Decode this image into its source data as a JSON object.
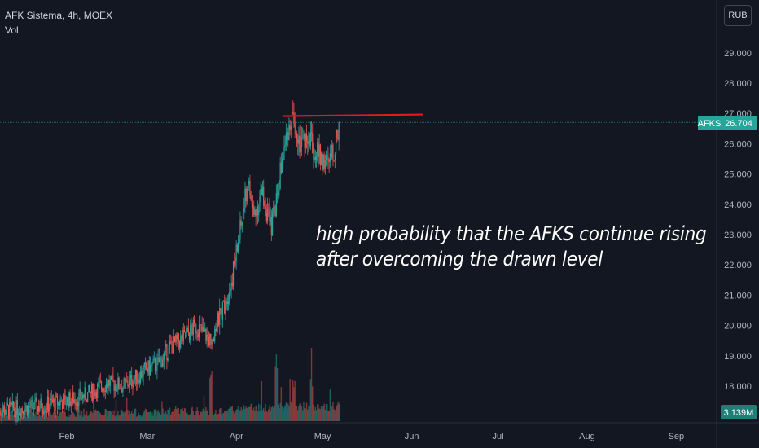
{
  "legend": {
    "symbol_line": "AFK Sistema, 4h, MOEX",
    "volume_label": "Vol"
  },
  "currency_button": "RUB",
  "annotation": {
    "line1": "high probability that the AFKS continue rising",
    "line2": "after overcoming the drawn level"
  },
  "colors": {
    "background": "#131722",
    "up": "#26a69a",
    "down": "#ef5350",
    "level_line": "#e01b1b",
    "axis_text": "#b2b5be"
  },
  "chart_data": {
    "type": "candlestick",
    "title": "",
    "xlabel": "",
    "ylabel": "",
    "symbol": "AFKS",
    "timeframe": "4h",
    "ylim": [
      16.9,
      29.7
    ],
    "y_ticks": [
      "18.000",
      "19.000",
      "20.000",
      "21.000",
      "22.000",
      "23.000",
      "24.000",
      "25.000",
      "26.000",
      "27.000",
      "28.000",
      "29.000"
    ],
    "x_ticks": [
      "Feb",
      "Mar",
      "Apr",
      "May",
      "Jun",
      "Jul",
      "Aug",
      "Sep"
    ],
    "last_price": 26.704,
    "last_price_label": "26.704",
    "volume_label": "3.139M",
    "grid": false,
    "resistance_level": {
      "value": 26.95,
      "from": "Apr 17",
      "to": "Jun 5"
    },
    "close_series": [
      {
        "date": "Jan 8",
        "close": 17.2
      },
      {
        "date": "Jan 20",
        "close": 17.3
      },
      {
        "date": "Jan 31",
        "close": 17.5
      },
      {
        "date": "Feb 8",
        "close": 17.7
      },
      {
        "date": "Feb 15",
        "close": 18.1
      },
      {
        "date": "Feb 21",
        "close": 18.0
      },
      {
        "date": "Feb 28",
        "close": 18.5
      },
      {
        "date": "Mar 5",
        "close": 18.75
      },
      {
        "date": "Mar 9",
        "close": 19.3
      },
      {
        "date": "Mar 14",
        "close": 19.6
      },
      {
        "date": "Mar 18",
        "close": 20.0
      },
      {
        "date": "Mar 23",
        "close": 19.5
      },
      {
        "date": "Mar 27",
        "close": 20.5
      },
      {
        "date": "Mar 30",
        "close": 21.3
      },
      {
        "date": "Apr 1",
        "close": 22.4
      },
      {
        "date": "Apr 3",
        "close": 23.5
      },
      {
        "date": "Apr 5",
        "close": 24.8
      },
      {
        "date": "Apr 7",
        "close": 23.6
      },
      {
        "date": "Apr 10",
        "close": 24.4
      },
      {
        "date": "Apr 13",
        "close": 23.2
      },
      {
        "date": "Apr 15",
        "close": 24.2
      },
      {
        "date": "Apr 17",
        "close": 25.5
      },
      {
        "date": "Apr 19",
        "close": 26.5
      },
      {
        "date": "Apr 21",
        "close": 27.0
      },
      {
        "date": "Apr 23",
        "close": 26.0
      },
      {
        "date": "Apr 26",
        "close": 26.3
      },
      {
        "date": "Apr 28",
        "close": 25.8
      },
      {
        "date": "May 1",
        "close": 25.5
      },
      {
        "date": "May 3",
        "close": 25.3
      },
      {
        "date": "May 5",
        "close": 25.8
      },
      {
        "date": "May 7",
        "close": 26.704
      }
    ],
    "volume_spikes": [
      {
        "date": "Mar 23",
        "relative": 0.7
      },
      {
        "date": "Apr 15",
        "relative": 1.0
      },
      {
        "date": "Apr 21",
        "relative": 0.6
      },
      {
        "date": "Apr 27",
        "relative": 0.6
      },
      {
        "date": "May 7",
        "relative": 0.15
      }
    ]
  }
}
